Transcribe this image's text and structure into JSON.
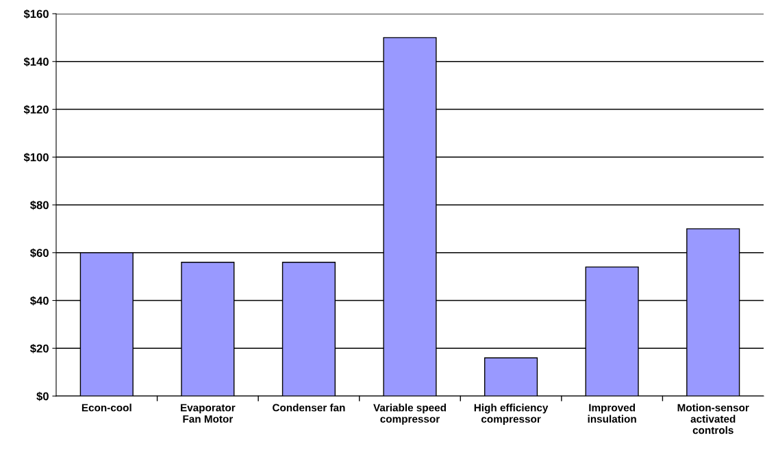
{
  "chart_data": {
    "type": "bar",
    "categories": [
      "Econ-cool",
      "Evaporator\nFan Motor",
      "Condenser fan",
      "Variable speed\ncompressor",
      "High efficiency\ncompressor",
      "Improved\ninsulation",
      "Motion-sensor\nactivated\ncontrols"
    ],
    "values": [
      60,
      56,
      56,
      150,
      16,
      54,
      70
    ],
    "color": "#9999ff",
    "ylim": [
      0,
      160
    ],
    "yticks": [
      {
        "value": 0,
        "label": "$0"
      },
      {
        "value": 20,
        "label": "$20"
      },
      {
        "value": 40,
        "label": "$40"
      },
      {
        "value": 60,
        "label": "$60"
      },
      {
        "value": 80,
        "label": "$80"
      },
      {
        "value": 100,
        "label": "$100"
      },
      {
        "value": 120,
        "label": "$120"
      },
      {
        "value": 140,
        "label": "$140"
      },
      {
        "value": 160,
        "label": "$160"
      }
    ],
    "grid": "y"
  }
}
